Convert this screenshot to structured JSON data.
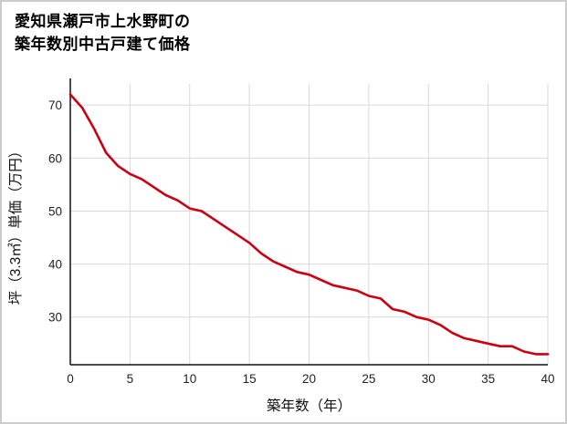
{
  "chart_data": {
    "type": "line",
    "title_lines": [
      "愛知県瀬戸市上水野町の",
      "築年数別中古戸建て価格"
    ],
    "title": "愛知県瀬戸市上水野町の築年数別中古戸建て価格",
    "xlabel": "築年数（年）",
    "ylabel": "坪（3.3㎡）単価（万円）",
    "x": [
      0,
      1,
      2,
      3,
      4,
      5,
      6,
      7,
      8,
      9,
      10,
      11,
      12,
      13,
      14,
      15,
      16,
      17,
      18,
      19,
      20,
      21,
      22,
      23,
      24,
      25,
      26,
      27,
      28,
      29,
      30,
      31,
      32,
      33,
      34,
      35,
      36,
      37,
      38,
      39,
      40
    ],
    "values": [
      72,
      69.5,
      65.5,
      61,
      58.5,
      57,
      56,
      54.5,
      53,
      52,
      50.5,
      50,
      48.5,
      47,
      45.5,
      44,
      42,
      40.5,
      39.5,
      38.5,
      38,
      37,
      36,
      35.5,
      35,
      34,
      33.5,
      31.5,
      31,
      30,
      29.5,
      28.5,
      27,
      26,
      25.5,
      25,
      24.5,
      24.5,
      23.5,
      23,
      23
    ],
    "xlim": [
      0,
      40
    ],
    "ylim": [
      21,
      74
    ],
    "xticks": [
      0,
      5,
      10,
      15,
      20,
      25,
      30,
      35,
      40
    ],
    "yticks": [
      30,
      40,
      50,
      60,
      70
    ],
    "grid": true,
    "legend": "none",
    "line_color": "#cc0011",
    "grid_color": "#d9d9d9",
    "axis_color": "#111111",
    "tick_color": "#222222"
  }
}
